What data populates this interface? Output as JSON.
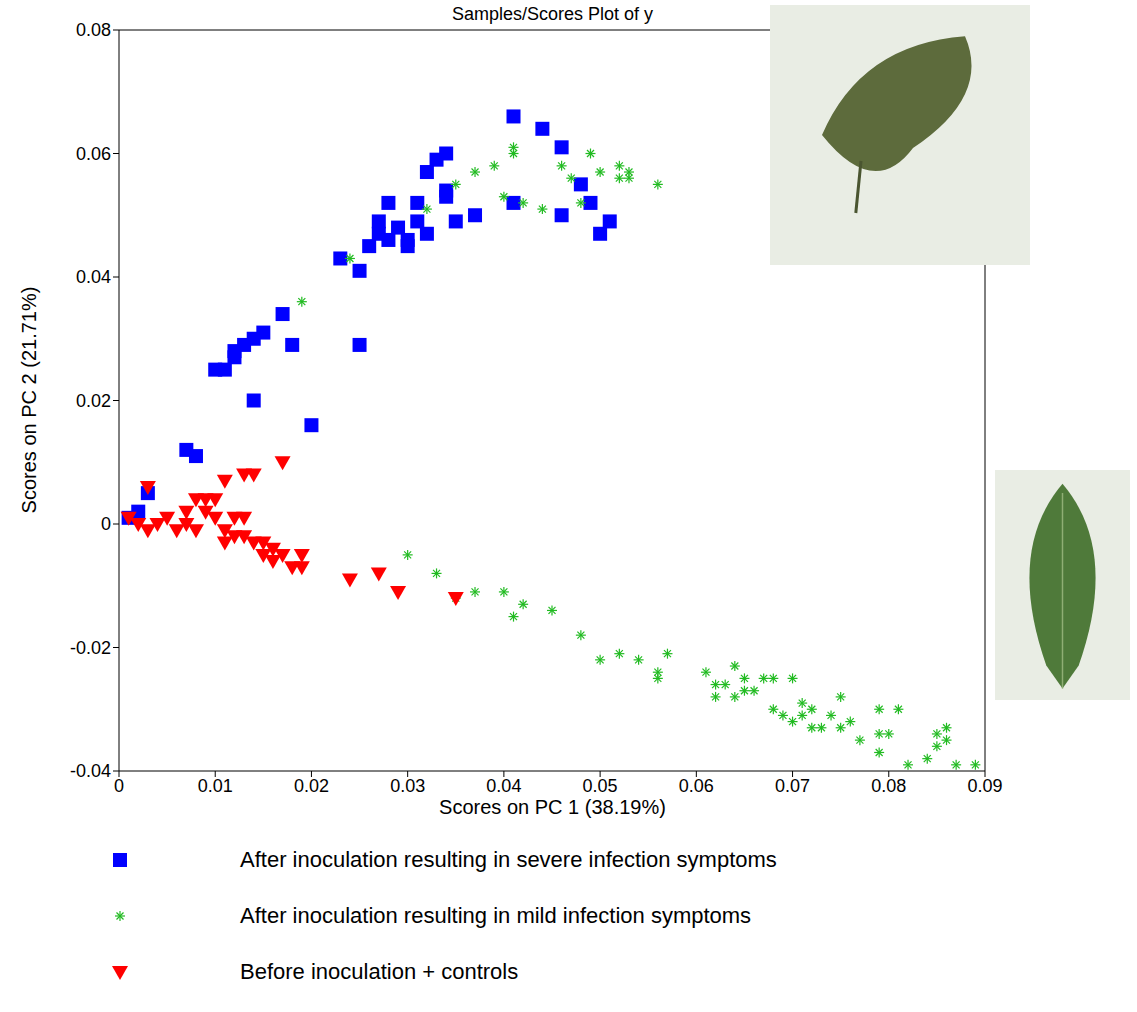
{
  "chart_data": {
    "type": "scatter",
    "title": "Samples/Scores Plot of y",
    "x_label": "Scores on PC 1 (38.19%)",
    "y_label": "Scores on PC 2 (21.71%)",
    "xlim": [
      0,
      0.09
    ],
    "xticks": [
      0,
      0.01,
      0.02,
      0.03,
      0.04,
      0.05,
      0.06,
      0.07,
      0.08,
      0.09
    ],
    "ylim": [
      -0.04,
      0.08
    ],
    "yticks": [
      -0.04,
      -0.02,
      0,
      0.02,
      0.04,
      0.06,
      0.08
    ],
    "legend": "bottom",
    "series": [
      {
        "name": "After inoculation resulting in severe infection symptoms",
        "color": "#0000ff",
        "marker": "square",
        "x": [
          0.001,
          0.002,
          0.003,
          0.007,
          0.008,
          0.01,
          0.011,
          0.012,
          0.012,
          0.013,
          0.014,
          0.015,
          0.014,
          0.017,
          0.018,
          0.02,
          0.023,
          0.025,
          0.025,
          0.026,
          0.027,
          0.027,
          0.028,
          0.028,
          0.029,
          0.03,
          0.03,
          0.031,
          0.031,
          0.032,
          0.032,
          0.033,
          0.034,
          0.034,
          0.034,
          0.035,
          0.037,
          0.041,
          0.041,
          0.044,
          0.046,
          0.046,
          0.048,
          0.049,
          0.05,
          0.051
        ],
        "y": [
          0.001,
          0.002,
          0.005,
          0.012,
          0.011,
          0.025,
          0.025,
          0.027,
          0.028,
          0.029,
          0.03,
          0.031,
          0.02,
          0.034,
          0.029,
          0.016,
          0.043,
          0.041,
          0.029,
          0.045,
          0.047,
          0.049,
          0.052,
          0.046,
          0.048,
          0.045,
          0.046,
          0.049,
          0.052,
          0.047,
          0.057,
          0.059,
          0.054,
          0.053,
          0.06,
          0.049,
          0.05,
          0.066,
          0.052,
          0.064,
          0.061,
          0.05,
          0.055,
          0.052,
          0.047,
          0.049
        ]
      },
      {
        "name": "After inoculation resulting in mild infection symptoms",
        "color": "#22bb22",
        "marker": "asterisk",
        "x": [
          0.019,
          0.024,
          0.032,
          0.035,
          0.037,
          0.039,
          0.04,
          0.041,
          0.041,
          0.042,
          0.044,
          0.046,
          0.047,
          0.049,
          0.048,
          0.05,
          0.052,
          0.052,
          0.053,
          0.053,
          0.056,
          0.03,
          0.033,
          0.035,
          0.037,
          0.04,
          0.041,
          0.042,
          0.045,
          0.048,
          0.05,
          0.052,
          0.054,
          0.056,
          0.056,
          0.057,
          0.061,
          0.062,
          0.062,
          0.063,
          0.064,
          0.064,
          0.065,
          0.065,
          0.066,
          0.067,
          0.068,
          0.068,
          0.069,
          0.07,
          0.07,
          0.071,
          0.071,
          0.072,
          0.072,
          0.073,
          0.074,
          0.075,
          0.075,
          0.076,
          0.077,
          0.079,
          0.079,
          0.079,
          0.08,
          0.081,
          0.082,
          0.084,
          0.085,
          0.085,
          0.086,
          0.086,
          0.087,
          0.089
        ],
        "y": [
          0.036,
          0.043,
          0.051,
          0.055,
          0.057,
          0.058,
          0.053,
          0.06,
          0.061,
          0.052,
          0.051,
          0.058,
          0.056,
          0.06,
          0.052,
          0.057,
          0.058,
          0.056,
          0.057,
          0.056,
          0.055,
          -0.005,
          -0.008,
          -0.012,
          -0.011,
          -0.011,
          -0.015,
          -0.013,
          -0.014,
          -0.018,
          -0.022,
          -0.021,
          -0.022,
          -0.025,
          -0.024,
          -0.021,
          -0.024,
          -0.026,
          -0.028,
          -0.026,
          -0.023,
          -0.028,
          -0.025,
          -0.027,
          -0.027,
          -0.025,
          -0.025,
          -0.03,
          -0.031,
          -0.025,
          -0.032,
          -0.029,
          -0.031,
          -0.033,
          -0.03,
          -0.033,
          -0.031,
          -0.028,
          -0.033,
          -0.032,
          -0.035,
          -0.03,
          -0.034,
          -0.037,
          -0.034,
          -0.03,
          -0.039,
          -0.038,
          -0.036,
          -0.034,
          -0.033,
          -0.035,
          -0.039,
          -0.039
        ]
      },
      {
        "name": "Before inoculation + controls",
        "color": "#ff0000",
        "marker": "triangle",
        "x": [
          0.001,
          0.002,
          0.003,
          0.003,
          0.004,
          0.005,
          0.006,
          0.007,
          0.007,
          0.008,
          0.008,
          0.009,
          0.009,
          0.01,
          0.01,
          0.011,
          0.011,
          0.011,
          0.012,
          0.012,
          0.013,
          0.013,
          0.013,
          0.014,
          0.014,
          0.015,
          0.015,
          0.016,
          0.016,
          0.017,
          0.017,
          0.018,
          0.019,
          0.019,
          0.024,
          0.027,
          0.029,
          0.035
        ],
        "y": [
          0.001,
          0.0,
          -0.001,
          0.006,
          0.0,
          0.001,
          -0.001,
          0.002,
          0.0,
          0.004,
          -0.001,
          0.004,
          0.002,
          0.001,
          0.004,
          -0.001,
          -0.003,
          0.007,
          0.001,
          -0.002,
          0.001,
          -0.002,
          0.008,
          0.008,
          -0.003,
          -0.003,
          -0.005,
          -0.004,
          -0.006,
          0.01,
          -0.005,
          -0.007,
          -0.005,
          -0.007,
          -0.009,
          -0.008,
          -0.011,
          -0.012
        ]
      }
    ]
  }
}
